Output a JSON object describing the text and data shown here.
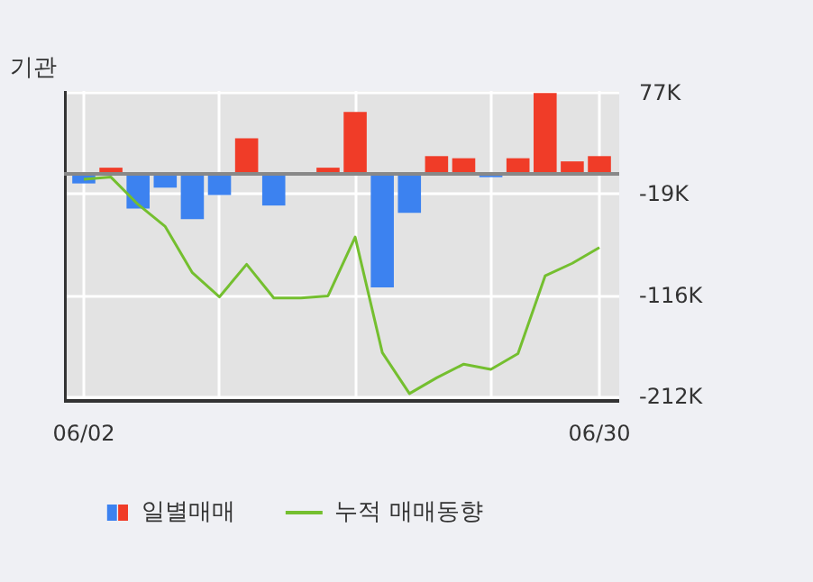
{
  "chart_data": {
    "type": "bar",
    "title": "기관",
    "categories": [
      "06/02",
      null,
      null,
      null,
      null,
      null,
      null,
      null,
      null,
      null,
      null,
      null,
      null,
      null,
      null,
      null,
      null,
      null,
      null,
      "06/30"
    ],
    "series": [
      {
        "name": "일별매매",
        "colors": [
          "#3c82f0",
          "#f03c28",
          "#3c82f0",
          "#3c82f0",
          "#3c82f0",
          "#3c82f0",
          "#f03c28",
          "#3c82f0",
          "#f03c28",
          "#f03c28",
          "#f03c28",
          "#3c82f0",
          "#3c82f0",
          "#f03c28",
          "#f03c28",
          "#3c82f0",
          "#f03c28",
          "#f03c28",
          "#f03c28",
          "#f03c28"
        ],
        "values": [
          -9000,
          6000,
          -33000,
          -13000,
          -43000,
          -20000,
          34000,
          -30000,
          0,
          6000,
          59000,
          -108000,
          -37000,
          17000,
          15000,
          -3000,
          15000,
          77000,
          12000,
          17000
        ]
      },
      {
        "type": "line",
        "name": "누적 매매동향",
        "color": "#74bf2f",
        "values": [
          -5000,
          -3000,
          -29000,
          -50000,
          -94000,
          -117000,
          -86000,
          -118000,
          -118000,
          -116000,
          -60000,
          -170000,
          -209000,
          -194000,
          -181000,
          -186000,
          -171000,
          -97000,
          -85000,
          -70000
        ]
      }
    ],
    "ylim": [
      -216000,
      79000
    ],
    "yticks": [
      {
        "value": 77000,
        "label": "77K"
      },
      {
        "value": -19000,
        "label": "-19K"
      },
      {
        "value": -116000,
        "label": "-116K"
      },
      {
        "value": -212000,
        "label": "-212K"
      }
    ],
    "grid": true,
    "legend": "bottom"
  }
}
